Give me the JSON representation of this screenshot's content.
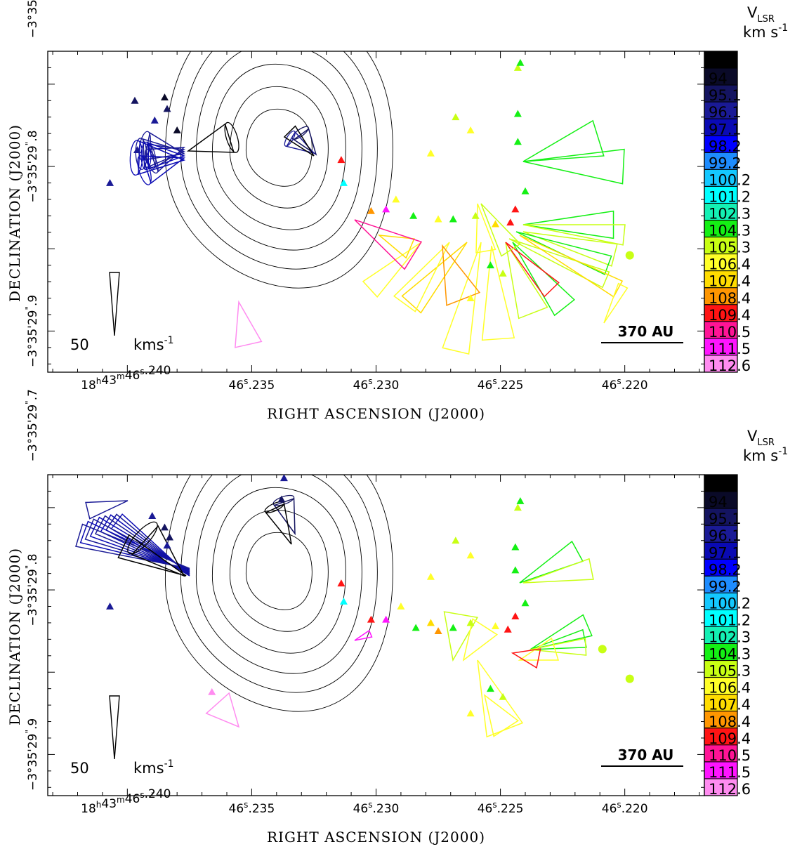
{
  "chart_data": [
    {
      "type": "scatter",
      "title": "",
      "xlabel": "RIGHT ASCENSION (J2000)",
      "ylabel": "DECLINATION (J2000)",
      "x_unit": "seconds of RA (46.2xx s)",
      "xlim": [
        46.2432,
        46.2168
      ],
      "ylim": [
        -3.0,
        -22.5
      ],
      "x_ticks": [
        {
          "value": 46.24,
          "label": "18h43m46.240"
        },
        {
          "value": 46.235,
          "label": "46.235"
        },
        {
          "value": 46.23,
          "label": "46.230"
        },
        {
          "value": 46.225,
          "label": "46.225"
        },
        {
          "value": 46.22,
          "label": "46.220"
        }
      ],
      "y_ticks": [
        {
          "value": 0,
          "label": "-3°35'29.7"
        },
        {
          "value": -10,
          "label": "-3°35'29.8"
        },
        {
          "value": -20,
          "label": "-3°35'29.9"
        }
      ],
      "colorbar_title": [
        "V_LSR",
        "km s^-1"
      ],
      "colorbar": [
        {
          "value": "93",
          "color": "#000000"
        },
        {
          "value": "94",
          "color": "#0a0a28"
        },
        {
          "value": "95.1",
          "color": "#141460"
        },
        {
          "value": "96.1",
          "color": "#1a1a96"
        },
        {
          "value": "97.1",
          "color": "#0a0ab4"
        },
        {
          "value": "98.2",
          "color": "#0000ff"
        },
        {
          "value": "99.2",
          "color": "#1e8cff"
        },
        {
          "value": "100.2",
          "color": "#14c8ff"
        },
        {
          "value": "101.2",
          "color": "#00ffff"
        },
        {
          "value": "102.3",
          "color": "#14f0b4"
        },
        {
          "value": "104.3",
          "color": "#14f014"
        },
        {
          "value": "105.3",
          "color": "#c8ff14"
        },
        {
          "value": "106.4",
          "color": "#ffff28"
        },
        {
          "value": "107.4",
          "color": "#ffdc00"
        },
        {
          "value": "108.4",
          "color": "#ff9600"
        },
        {
          "value": "109.4",
          "color": "#ff1414"
        },
        {
          "value": "110.5",
          "color": "#ff1496"
        },
        {
          "value": "111.5",
          "color": "#ff14ff"
        },
        {
          "value": "112.6",
          "color": "#ff8cf0"
        }
      ],
      "velocity_scale": {
        "label_value": "50",
        "label_unit": "kms^-1"
      },
      "distance_scale": "370 AU",
      "triangles": [
        {
          "x": 46.2397,
          "y": -6.0,
          "v": 95.1
        },
        {
          "x": 46.2385,
          "y": -5.8,
          "v": 94
        },
        {
          "x": 46.2384,
          "y": -6.5,
          "v": 95.1
        },
        {
          "x": 46.2389,
          "y": -7.2,
          "v": 96.1
        },
        {
          "x": 46.2396,
          "y": -9.0,
          "v": 96.1
        },
        {
          "x": 46.238,
          "y": -7.8,
          "v": 94
        },
        {
          "x": 46.2407,
          "y": -11.0,
          "v": 96.1
        },
        {
          "x": 46.2337,
          "y": -2.8,
          "v": 96.1
        },
        {
          "x": 46.2331,
          "y": -1.3,
          "v": 99.2
        },
        {
          "x": 46.2328,
          "y": -0.8,
          "v": 99.2
        },
        {
          "x": 46.2314,
          "y": -9.6,
          "v": 109.4
        },
        {
          "x": 46.2313,
          "y": -11.0,
          "v": 101.2
        },
        {
          "x": 46.2302,
          "y": -12.7,
          "v": 108.4
        },
        {
          "x": 46.2296,
          "y": -12.6,
          "v": 111.5
        },
        {
          "x": 46.2292,
          "y": -12.0,
          "v": 106.4
        },
        {
          "x": 46.2285,
          "y": -13.0,
          "v": 104.3
        },
        {
          "x": 46.2275,
          "y": -13.2,
          "v": 106.4
        },
        {
          "x": 46.2269,
          "y": -13.2,
          "v": 104.3
        },
        {
          "x": 46.226,
          "y": -13.0,
          "v": 105.3
        },
        {
          "x": 46.2252,
          "y": -13.5,
          "v": 107.4
        },
        {
          "x": 46.2246,
          "y": -13.4,
          "v": 109.4
        },
        {
          "x": 46.2244,
          "y": -12.6,
          "v": 109.4
        },
        {
          "x": 46.224,
          "y": -11.5,
          "v": 104.3
        },
        {
          "x": 46.2243,
          "y": -4.0,
          "v": 105.3
        },
        {
          "x": 46.2242,
          "y": -3.7,
          "v": 104.3
        },
        {
          "x": 46.2243,
          "y": -6.8,
          "v": 104.3
        },
        {
          "x": 46.2243,
          "y": -8.5,
          "v": 104.3
        },
        {
          "x": 46.2262,
          "y": -7.8,
          "v": 106.4
        },
        {
          "x": 46.2268,
          "y": -7.0,
          "v": 105.3
        },
        {
          "x": 46.2278,
          "y": -9.2,
          "v": 106.4
        },
        {
          "x": 46.2254,
          "y": -16.0,
          "v": 104.3
        },
        {
          "x": 46.2249,
          "y": -16.5,
          "v": 105.3
        },
        {
          "x": 46.2262,
          "y": -18.0,
          "v": 106.4
        }
      ],
      "circles": [
        {
          "x": 46.2198,
          "y": -15.4,
          "v": 105.3
        }
      ]
    },
    {
      "type": "scatter",
      "title": "",
      "xlabel": "RIGHT ASCENSION (J2000)",
      "ylabel": "DECLINATION (J2000)",
      "x_unit": "seconds of RA (46.2xx s)",
      "xlim": [
        46.2432,
        46.2168
      ],
      "ylim": [
        -3.0,
        -22.5
      ],
      "x_ticks": [
        {
          "value": 46.24,
          "label": "18h43m46.240"
        },
        {
          "value": 46.235,
          "label": "46.235"
        },
        {
          "value": 46.23,
          "label": "46.230"
        },
        {
          "value": 46.225,
          "label": "46.225"
        },
        {
          "value": 46.22,
          "label": "46.220"
        }
      ],
      "y_ticks": [
        {
          "value": 0,
          "label": "-3°35'29.7"
        },
        {
          "value": -10,
          "label": "-3°35'29.8"
        },
        {
          "value": -20,
          "label": "-3°35'29.9"
        }
      ],
      "colorbar_title": [
        "V_LSR",
        "km s^-1"
      ],
      "colorbar": [
        {
          "value": "93",
          "color": "#000000"
        },
        {
          "value": "94",
          "color": "#0a0a28"
        },
        {
          "value": "95.1",
          "color": "#141460"
        },
        {
          "value": "96.1",
          "color": "#1a1a96"
        },
        {
          "value": "97.1",
          "color": "#0a0ab4"
        },
        {
          "value": "98.2",
          "color": "#0000ff"
        },
        {
          "value": "99.2",
          "color": "#1e8cff"
        },
        {
          "value": "100.2",
          "color": "#14c8ff"
        },
        {
          "value": "101.2",
          "color": "#00ffff"
        },
        {
          "value": "102.3",
          "color": "#14f0b4"
        },
        {
          "value": "104.3",
          "color": "#14f014"
        },
        {
          "value": "105.3",
          "color": "#c8ff14"
        },
        {
          "value": "106.4",
          "color": "#ffff28"
        },
        {
          "value": "107.4",
          "color": "#ffdc00"
        },
        {
          "value": "108.4",
          "color": "#ff9600"
        },
        {
          "value": "109.4",
          "color": "#ff1414"
        },
        {
          "value": "110.5",
          "color": "#ff1496"
        },
        {
          "value": "111.5",
          "color": "#ff14ff"
        },
        {
          "value": "112.6",
          "color": "#ff8cf0"
        }
      ],
      "velocity_scale": {
        "label_value": "50",
        "label_unit": "kms^-1"
      },
      "distance_scale": "370 AU",
      "triangles": [
        {
          "x": 46.2385,
          "y": -6.2,
          "v": 95.1
        },
        {
          "x": 46.2383,
          "y": -6.8,
          "v": 95.1
        },
        {
          "x": 46.2384,
          "y": -7.3,
          "v": 96.1
        },
        {
          "x": 46.239,
          "y": -5.5,
          "v": 96.1
        },
        {
          "x": 46.2407,
          "y": -11.0,
          "v": 96.1
        },
        {
          "x": 46.2337,
          "y": -3.2,
          "v": 96.1
        },
        {
          "x": 46.2338,
          "y": -4.5,
          "v": 95.1
        },
        {
          "x": 46.2333,
          "y": -2.6,
          "v": 99.2
        },
        {
          "x": 46.2327,
          "y": -2.0,
          "v": 99.2
        },
        {
          "x": 46.2314,
          "y": -9.6,
          "v": 109.4
        },
        {
          "x": 46.2313,
          "y": -10.7,
          "v": 101.2
        },
        {
          "x": 46.2302,
          "y": -11.8,
          "v": 109.4
        },
        {
          "x": 46.2296,
          "y": -11.8,
          "v": 111.5
        },
        {
          "x": 46.229,
          "y": -11.0,
          "v": 106.4
        },
        {
          "x": 46.2284,
          "y": -12.3,
          "v": 104.3
        },
        {
          "x": 46.2278,
          "y": -12.0,
          "v": 107.4
        },
        {
          "x": 46.2275,
          "y": -12.5,
          "v": 108.4
        },
        {
          "x": 46.2269,
          "y": -12.3,
          "v": 104.3
        },
        {
          "x": 46.2262,
          "y": -12.0,
          "v": 105.3
        },
        {
          "x": 46.2252,
          "y": -12.2,
          "v": 106.4
        },
        {
          "x": 46.2247,
          "y": -12.4,
          "v": 109.4
        },
        {
          "x": 46.2244,
          "y": -11.6,
          "v": 109.4
        },
        {
          "x": 46.224,
          "y": -10.8,
          "v": 104.3
        },
        {
          "x": 46.2243,
          "y": -5.0,
          "v": 105.3
        },
        {
          "x": 46.2242,
          "y": -4.6,
          "v": 104.3
        },
        {
          "x": 46.2244,
          "y": -7.4,
          "v": 104.3
        },
        {
          "x": 46.2244,
          "y": -8.8,
          "v": 104.3
        },
        {
          "x": 46.2262,
          "y": -7.9,
          "v": 106.4
        },
        {
          "x": 46.2268,
          "y": -7.0,
          "v": 105.3
        },
        {
          "x": 46.2278,
          "y": -9.2,
          "v": 106.4
        },
        {
          "x": 46.2254,
          "y": -16.0,
          "v": 104.3
        },
        {
          "x": 46.2249,
          "y": -16.5,
          "v": 105.3
        },
        {
          "x": 46.2262,
          "y": -17.5,
          "v": 106.4
        },
        {
          "x": 46.2366,
          "y": -16.2,
          "v": 112.6
        }
      ],
      "circles": [
        {
          "x": 46.2209,
          "y": -13.6,
          "v": 105.3
        },
        {
          "x": 46.2198,
          "y": -15.4,
          "v": 105.3
        }
      ]
    }
  ]
}
